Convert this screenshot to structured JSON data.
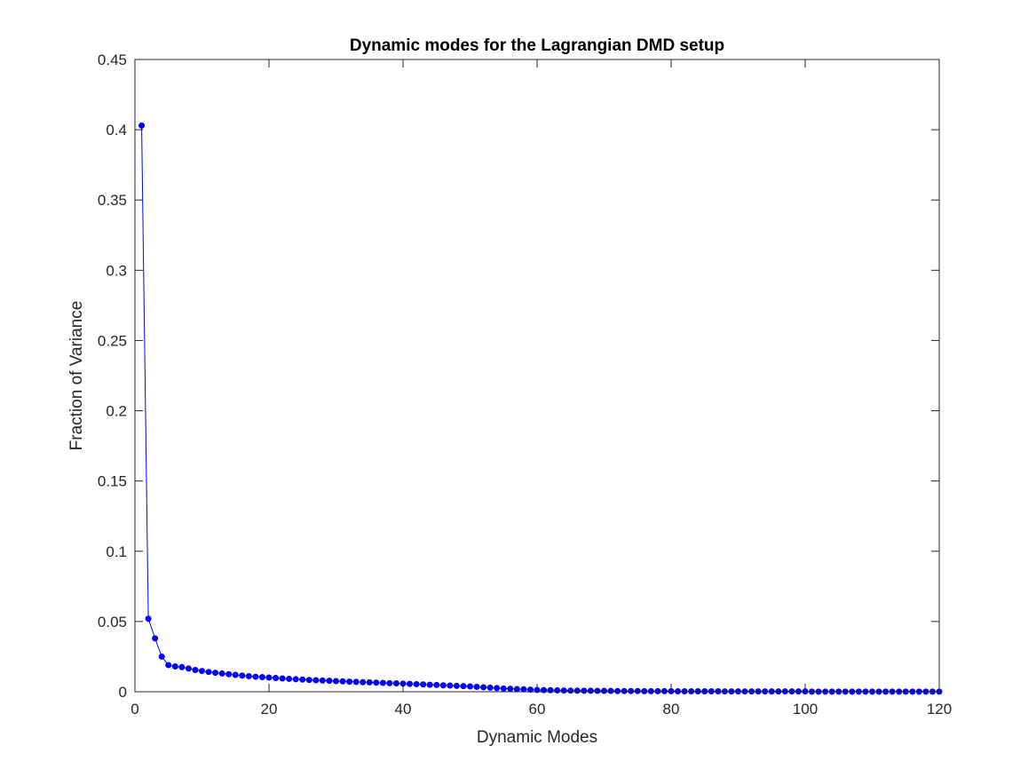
{
  "chart_data": {
    "type": "line",
    "title": "Dynamic modes for the Lagrangian DMD setup",
    "xlabel": "Dynamic Modes",
    "ylabel": "Fraction of Variance",
    "xlim": [
      0,
      120
    ],
    "ylim": [
      0,
      0.45
    ],
    "xticks": [
      0,
      20,
      40,
      60,
      80,
      100,
      120
    ],
    "xtick_labels": [
      "0",
      "20",
      "40",
      "60",
      "80",
      "100",
      "120"
    ],
    "yticks": [
      0,
      0.05,
      0.1,
      0.15,
      0.2,
      0.25,
      0.3,
      0.35,
      0.4,
      0.45
    ],
    "ytick_labels": [
      "0",
      "0.05",
      "0.1",
      "0.15",
      "0.2",
      "0.25",
      "0.3",
      "0.35",
      "0.4",
      "0.45"
    ],
    "grid": false,
    "box": true,
    "series": [
      {
        "color": "#0000ff",
        "marker": "circle",
        "x": [
          1,
          2,
          3,
          4,
          5,
          6,
          7,
          8,
          9,
          10,
          11,
          12,
          13,
          14,
          15,
          16,
          17,
          18,
          19,
          20,
          21,
          22,
          23,
          24,
          25,
          26,
          27,
          28,
          29,
          30,
          31,
          32,
          33,
          34,
          35,
          36,
          37,
          38,
          39,
          40,
          41,
          42,
          43,
          44,
          45,
          46,
          47,
          48,
          49,
          50,
          51,
          52,
          53,
          54,
          55,
          56,
          57,
          58,
          59,
          60,
          61,
          62,
          63,
          64,
          65,
          66,
          67,
          68,
          69,
          70,
          71,
          72,
          73,
          74,
          75,
          76,
          77,
          78,
          79,
          80,
          81,
          82,
          83,
          84,
          85,
          86,
          87,
          88,
          89,
          90,
          91,
          92,
          93,
          94,
          95,
          96,
          97,
          98,
          99,
          100,
          101,
          102,
          103,
          104,
          105,
          106,
          107,
          108,
          109,
          110,
          111,
          112,
          113,
          114,
          115,
          116,
          117,
          118,
          119,
          120
        ],
        "y": [
          0.403,
          0.052,
          0.038,
          0.025,
          0.019,
          0.018,
          0.0175,
          0.0165,
          0.0155,
          0.0148,
          0.0141,
          0.0135,
          0.013,
          0.0125,
          0.012,
          0.0115,
          0.0111,
          0.0107,
          0.0104,
          0.0101,
          0.0098,
          0.0095,
          0.0092,
          0.0089,
          0.0087,
          0.0084,
          0.0082,
          0.008,
          0.0078,
          0.0076,
          0.0074,
          0.0072,
          0.007,
          0.0068,
          0.0067,
          0.0065,
          0.0063,
          0.0061,
          0.006,
          0.0058,
          0.0056,
          0.0054,
          0.0052,
          0.005,
          0.0048,
          0.0046,
          0.0044,
          0.0042,
          0.004,
          0.0038,
          0.0035,
          0.0032,
          0.0029,
          0.0026,
          0.0023,
          0.0021,
          0.0019,
          0.0017,
          0.0015,
          0.0013,
          0.0012,
          0.0011,
          0.001,
          0.0009,
          0.0008,
          0.0008,
          0.0007,
          0.0007,
          0.0006,
          0.0006,
          0.0006,
          0.0005,
          0.0005,
          0.0005,
          0.0005,
          0.0004,
          0.0004,
          0.0004,
          0.0004,
          0.0004,
          0.0003,
          0.0003,
          0.0003,
          0.0003,
          0.0003,
          0.0003,
          0.0003,
          0.0002,
          0.0002,
          0.0002,
          0.0002,
          0.0002,
          0.0002,
          0.0002,
          0.0002,
          0.0002,
          0.0002,
          0.0002,
          0.0002,
          0.0002,
          0.0001,
          0.0001,
          0.0001,
          0.0001,
          0.0001,
          0.0001,
          0.0001,
          0.0001,
          0.0001,
          0.0001,
          0.0001,
          0.0001,
          0.0001,
          0.0001,
          0.0001,
          0.0001,
          0.0001,
          0.0001,
          0.0001,
          0.0001
        ]
      }
    ]
  }
}
